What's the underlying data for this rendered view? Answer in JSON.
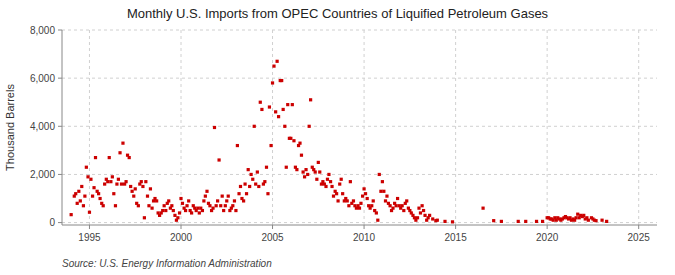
{
  "chart_data": {
    "type": "scatter",
    "title": "Monthly U.S. Imports from OPEC Countries of Liquified Petroleum Gases",
    "ylabel": "Thousand Barrels",
    "annotations": [
      "Source: U.S. Energy Information Administration"
    ],
    "color": "#cc0000",
    "marker": "square",
    "grid": true,
    "xlim": [
      1993.5,
      2026.0
    ],
    "ylim": [
      -100,
      8000
    ],
    "xticks": [
      1995,
      2000,
      2005,
      2010,
      2015,
      2020,
      2025
    ],
    "yticks": [
      0,
      {
        "value": 2000,
        "label": "2,000"
      },
      {
        "value": 4000,
        "label": "4,000"
      },
      {
        "value": 6000,
        "label": "6,000"
      },
      {
        "value": 8000,
        "label": "8,000"
      }
    ],
    "x": [
      1994.0,
      1994.17,
      1994.25,
      1994.33,
      1994.42,
      1994.5,
      1994.58,
      1994.67,
      1994.75,
      1994.83,
      1994.92,
      1995.0,
      1995.08,
      1995.17,
      1995.25,
      1995.33,
      1995.42,
      1995.5,
      1995.58,
      1995.67,
      1995.75,
      1995.83,
      1995.92,
      1996.0,
      1996.08,
      1996.17,
      1996.25,
      1996.33,
      1996.42,
      1996.5,
      1996.58,
      1996.67,
      1996.75,
      1996.83,
      1996.92,
      1997.0,
      1997.08,
      1997.17,
      1997.25,
      1997.33,
      1997.42,
      1997.5,
      1997.58,
      1997.67,
      1997.75,
      1997.83,
      1997.92,
      1998.0,
      1998.08,
      1998.17,
      1998.25,
      1998.33,
      1998.42,
      1998.5,
      1998.58,
      1998.67,
      1998.75,
      1998.83,
      1998.92,
      1999.0,
      1999.08,
      1999.17,
      1999.25,
      1999.33,
      1999.42,
      1999.5,
      1999.58,
      1999.67,
      1999.75,
      1999.83,
      1999.92,
      2000.0,
      2000.08,
      2000.17,
      2000.25,
      2000.33,
      2000.42,
      2000.5,
      2000.58,
      2000.67,
      2000.75,
      2000.83,
      2000.92,
      2001.0,
      2001.08,
      2001.17,
      2001.25,
      2001.33,
      2001.42,
      2001.5,
      2001.58,
      2001.67,
      2001.75,
      2001.83,
      2001.92,
      2002.0,
      2002.08,
      2002.17,
      2002.25,
      2002.33,
      2002.42,
      2002.5,
      2002.58,
      2002.67,
      2002.75,
      2002.83,
      2002.92,
      2003.0,
      2003.08,
      2003.17,
      2003.25,
      2003.33,
      2003.42,
      2003.5,
      2003.58,
      2003.67,
      2003.75,
      2003.83,
      2003.92,
      2004.0,
      2004.08,
      2004.17,
      2004.25,
      2004.33,
      2004.42,
      2004.5,
      2004.58,
      2004.67,
      2004.75,
      2004.83,
      2004.92,
      2005.0,
      2005.08,
      2005.17,
      2005.25,
      2005.33,
      2005.42,
      2005.5,
      2005.58,
      2005.67,
      2005.75,
      2005.83,
      2005.92,
      2006.0,
      2006.08,
      2006.17,
      2006.25,
      2006.33,
      2006.42,
      2006.5,
      2006.58,
      2006.67,
      2006.75,
      2006.83,
      2006.92,
      2007.0,
      2007.08,
      2007.17,
      2007.25,
      2007.33,
      2007.42,
      2007.5,
      2007.58,
      2007.67,
      2007.75,
      2007.83,
      2007.92,
      2008.0,
      2008.08,
      2008.17,
      2008.25,
      2008.33,
      2008.42,
      2008.5,
      2008.58,
      2008.67,
      2008.75,
      2008.83,
      2008.92,
      2009.0,
      2009.08,
      2009.17,
      2009.25,
      2009.33,
      2009.42,
      2009.5,
      2009.58,
      2009.67,
      2009.75,
      2009.83,
      2009.92,
      2010.0,
      2010.08,
      2010.17,
      2010.25,
      2010.33,
      2010.42,
      2010.5,
      2010.58,
      2010.67,
      2010.75,
      2010.83,
      2010.92,
      2011.0,
      2011.08,
      2011.17,
      2011.25,
      2011.33,
      2011.42,
      2011.5,
      2011.58,
      2011.67,
      2011.75,
      2011.83,
      2011.92,
      2012.0,
      2012.08,
      2012.17,
      2012.25,
      2012.33,
      2012.42,
      2012.5,
      2012.58,
      2012.67,
      2012.75,
      2012.83,
      2012.92,
      2013.0,
      2013.08,
      2013.17,
      2013.25,
      2013.33,
      2013.42,
      2013.5,
      2013.58,
      2013.75,
      2013.92,
      2014.0,
      2014.42,
      2014.83,
      2016.5,
      2017.08,
      2017.5,
      2018.42,
      2018.83,
      2019.42,
      2019.75,
      2020.0,
      2020.08,
      2020.17,
      2020.25,
      2020.33,
      2020.42,
      2020.5,
      2020.58,
      2020.67,
      2020.75,
      2020.83,
      2020.92,
      2021.0,
      2021.08,
      2021.17,
      2021.25,
      2021.33,
      2021.42,
      2021.5,
      2021.58,
      2021.67,
      2021.75,
      2021.83,
      2021.92,
      2022.0,
      2022.08,
      2022.17,
      2022.25,
      2022.42,
      2022.5,
      2022.58,
      2022.67,
      2023.0,
      2023.25
    ],
    "values": [
      330,
      1100,
      1200,
      800,
      1300,
      900,
      1500,
      700,
      1100,
      2300,
      1900,
      430,
      1800,
      1100,
      1450,
      2700,
      1300,
      1200,
      1000,
      800,
      700,
      1600,
      1800,
      1700,
      2700,
      1700,
      1900,
      1200,
      700,
      1600,
      1800,
      2900,
      1600,
      3300,
      1600,
      1700,
      2800,
      2700,
      1500,
      1300,
      1100,
      1400,
      800,
      700,
      1600,
      1700,
      1500,
      200,
      1700,
      1100,
      700,
      1400,
      600,
      900,
      1000,
      900,
      400,
      300,
      400,
      500,
      700,
      500,
      800,
      900,
      600,
      700,
      500,
      300,
      100,
      200,
      400,
      1000,
      800,
      600,
      500,
      700,
      900,
      500,
      400,
      700,
      600,
      500,
      600,
      400,
      600,
      500,
      900,
      1100,
      1300,
      800,
      700,
      500,
      600,
      3950,
      700,
      900,
      2600,
      700,
      1100,
      500,
      700,
      900,
      1100,
      500,
      600,
      700,
      900,
      500,
      3200,
      1200,
      1500,
      1000,
      900,
      1600,
      1200,
      2200,
      1500,
      2000,
      1800,
      4000,
      1600,
      2100,
      1500,
      5000,
      4700,
      1600,
      1700,
      2300,
      1200,
      4800,
      3200,
      5800,
      6500,
      4600,
      6700,
      4400,
      5900,
      5900,
      4700,
      4000,
      2300,
      4900,
      3500,
      3500,
      4900,
      3400,
      2300,
      2200,
      3200,
      3300,
      2800,
      2100,
      1900,
      2200,
      2000,
      4000,
      5100,
      2300,
      2200,
      2100,
      1800,
      2500,
      2100,
      1600,
      1700,
      1600,
      1500,
      1800,
      2000,
      1700,
      1500,
      1100,
      1300,
      1200,
      900,
      1600,
      1800,
      1200,
      900,
      1000,
      900,
      700,
      1700,
      800,
      900,
      700,
      600,
      700,
      600,
      800,
      1100,
      1400,
      1200,
      1000,
      700,
      600,
      700,
      900,
      500,
      400,
      100,
      2000,
      1300,
      1700,
      1300,
      900,
      1100,
      800,
      700,
      500,
      600,
      800,
      700,
      1000,
      700,
      600,
      700,
      500,
      800,
      900,
      600,
      500,
      400,
      300,
      200,
      100,
      200,
      600,
      400,
      700,
      500,
      300,
      100,
      200,
      300,
      150,
      80,
      100,
      50,
      30,
      600,
      80,
      50,
      50,
      50,
      50,
      50,
      200,
      200,
      150,
      150,
      100,
      200,
      100,
      200,
      150,
      100,
      150,
      200,
      250,
      200,
      150,
      200,
      100,
      150,
      100,
      200,
      350,
      200,
      300,
      250,
      300,
      150,
      200,
      100,
      200,
      150,
      100,
      80,
      100,
      50
    ]
  }
}
